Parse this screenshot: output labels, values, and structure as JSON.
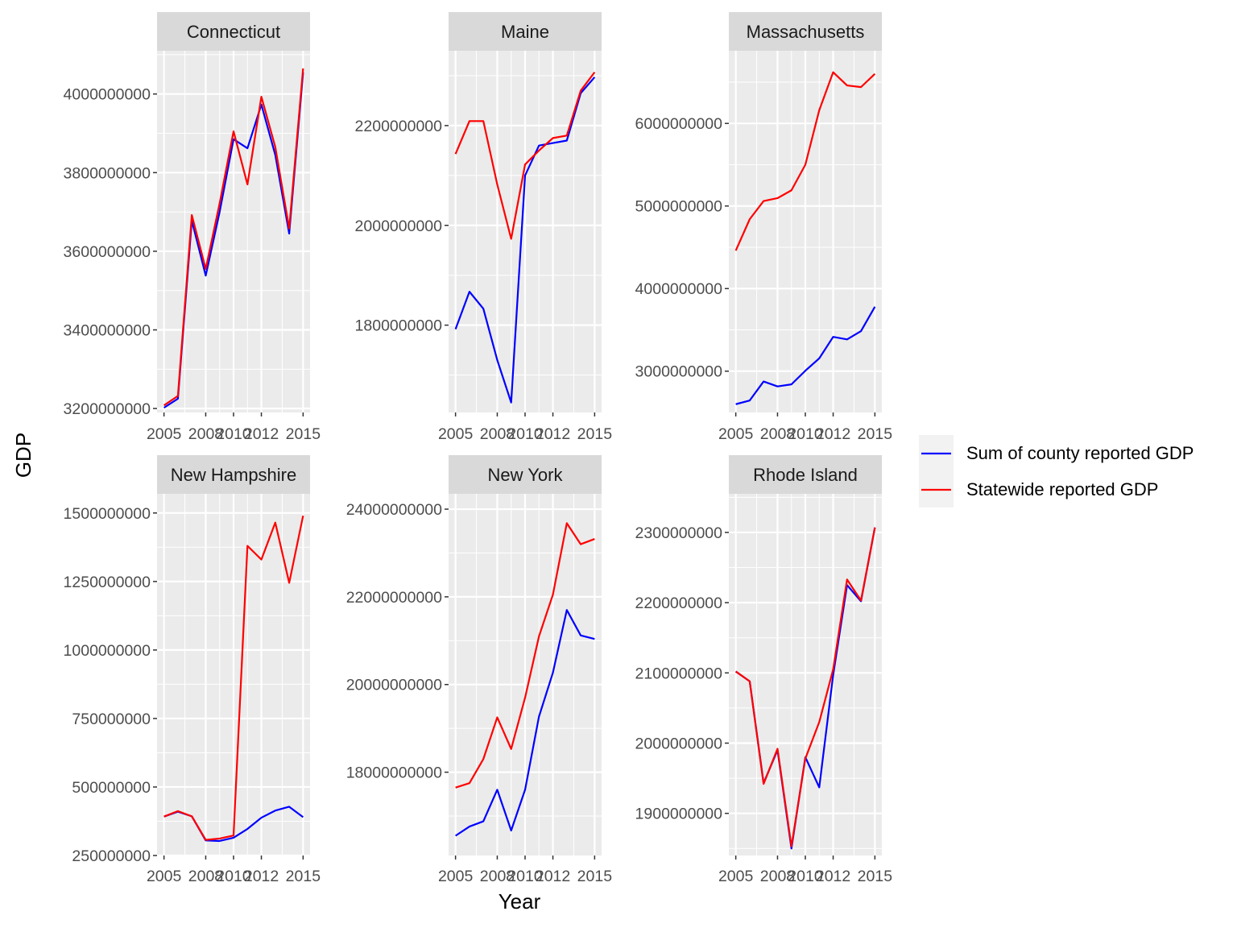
{
  "chart_data": {
    "type": "line",
    "xlabel": "Year",
    "ylabel": "GDP",
    "legend": {
      "placement": "right",
      "entries": [
        {
          "name": "Sum of county reported GDP",
          "color": "#0000ff"
        },
        {
          "name": "Statewide reported GDP",
          "color": "#ff0000"
        }
      ]
    },
    "grid": true,
    "panels": [
      {
        "title": "Connecticut",
        "x": [
          2005,
          2006,
          2007,
          2008,
          2009,
          2010,
          2011,
          2012,
          2013,
          2014,
          2015
        ],
        "xticks": [
          2005,
          2008,
          2010,
          2012,
          2015
        ],
        "yticks": [
          3200000000,
          3400000000,
          3600000000,
          3800000000,
          4000000000
        ],
        "ylim": [
          3190000000,
          4110000000
        ],
        "series": [
          {
            "name": "Sum of county reported GDP",
            "values": [
              3202000000,
              3225000000,
              3678000000,
              3538000000,
              3700000000,
              3885000000,
              3862000000,
              3973000000,
              3845000000,
              3645000000,
              4055000000
            ]
          },
          {
            "name": "Statewide reported GDP",
            "values": [
              3208000000,
              3232000000,
              3692000000,
              3555000000,
              3722000000,
              3905000000,
              3770000000,
              3993000000,
              3865000000,
              3658000000,
              4065000000
            ]
          }
        ]
      },
      {
        "title": "Maine",
        "x": [
          2005,
          2006,
          2007,
          2008,
          2009,
          2010,
          2011,
          2012,
          2013,
          2014,
          2015
        ],
        "xticks": [
          2005,
          2008,
          2010,
          2012,
          2015
        ],
        "yticks": [
          1800000000,
          2000000000,
          2200000000
        ],
        "ylim": [
          1625000000,
          2350000000
        ],
        "series": [
          {
            "name": "Sum of county reported GDP",
            "values": [
              1792000000,
              1867000000,
              1833000000,
              1730000000,
              1645000000,
              2100000000,
              2160000000,
              2165000000,
              2170000000,
              2265000000,
              2297000000
            ]
          },
          {
            "name": "Statewide reported GDP",
            "values": [
              2143000000,
              2209000000,
              2209000000,
              2082000000,
              1973000000,
              2122000000,
              2150000000,
              2175000000,
              2180000000,
              2270000000,
              2307000000
            ]
          }
        ]
      },
      {
        "title": "Massachusetts",
        "x": [
          2005,
          2006,
          2007,
          2008,
          2009,
          2010,
          2011,
          2012,
          2013,
          2014,
          2015
        ],
        "xticks": [
          2005,
          2008,
          2010,
          2012,
          2015
        ],
        "yticks": [
          3000000000,
          4000000000,
          5000000000,
          6000000000
        ],
        "ylim": [
          2500000000,
          6880000000
        ],
        "series": [
          {
            "name": "Sum of county reported GDP",
            "values": [
              2600000000,
              2645000000,
              2875000000,
              2815000000,
              2840000000,
              3005000000,
              3155000000,
              3415000000,
              3385000000,
              3485000000,
              3780000000
            ]
          },
          {
            "name": "Statewide reported GDP",
            "values": [
              4460000000,
              4840000000,
              5060000000,
              5095000000,
              5190000000,
              5500000000,
              6160000000,
              6620000000,
              6460000000,
              6440000000,
              6600000000
            ]
          }
        ]
      },
      {
        "title": "New Hampshire",
        "x": [
          2005,
          2006,
          2007,
          2008,
          2009,
          2010,
          2011,
          2012,
          2013,
          2014,
          2015
        ],
        "xticks": [
          2005,
          2008,
          2010,
          2012,
          2015
        ],
        "yticks": [
          250000000,
          500000000,
          750000000,
          1000000000,
          1250000000,
          1500000000
        ],
        "ylim": [
          250000000,
          1570000000
        ],
        "series": [
          {
            "name": "Sum of county reported GDP",
            "values": [
              392000000,
              410000000,
              393000000,
              305000000,
              303000000,
              315000000,
              347000000,
              388000000,
              414000000,
              428000000,
              390000000
            ]
          },
          {
            "name": "Statewide reported GDP",
            "values": [
              392000000,
              412000000,
              393000000,
              307000000,
              312000000,
              323000000,
              1380000000,
              1330000000,
              1465000000,
              1245000000,
              1490000000
            ]
          }
        ]
      },
      {
        "title": "New York",
        "x": [
          2005,
          2006,
          2007,
          2008,
          2009,
          2010,
          2011,
          2012,
          2013,
          2014,
          2015
        ],
        "xticks": [
          2005,
          2008,
          2010,
          2012,
          2015
        ],
        "yticks": [
          18000000000,
          20000000000,
          22000000000,
          24000000000
        ],
        "ylim": [
          16100000000,
          24350000000
        ],
        "series": [
          {
            "name": "Sum of county reported GDP",
            "values": [
              16550000000,
              16760000000,
              16880000000,
              17600000000,
              16670000000,
              17600000000,
              19270000000,
              20270000000,
              21700000000,
              21120000000,
              21040000000
            ]
          },
          {
            "name": "Statewide reported GDP",
            "values": [
              17650000000,
              17750000000,
              18300000000,
              19250000000,
              18530000000,
              19700000000,
              21100000000,
              22050000000,
              23680000000,
              23200000000,
              23320000000
            ]
          }
        ]
      },
      {
        "title": "Rhode Island",
        "x": [
          2005,
          2006,
          2007,
          2008,
          2009,
          2010,
          2011,
          2012,
          2013,
          2014,
          2015
        ],
        "xticks": [
          2005,
          2008,
          2010,
          2012,
          2015
        ],
        "yticks": [
          1900000000,
          2000000000,
          2100000000,
          2200000000,
          2300000000
        ],
        "ylim": [
          1840000000,
          2355000000
        ],
        "series": [
          {
            "name": "Sum of county reported GDP",
            "values": [
              2102000000,
              2088000000,
              1943000000,
              1990000000,
              1850000000,
              1980000000,
              1937000000,
              2097000000,
              2225000000,
              2202000000,
              2307000000
            ]
          },
          {
            "name": "Statewide reported GDP",
            "values": [
              2102000000,
              2088000000,
              1942000000,
              1992000000,
              1853000000,
              1978000000,
              2030000000,
              2105000000,
              2233000000,
              2203000000,
              2307000000
            ]
          }
        ]
      }
    ]
  }
}
